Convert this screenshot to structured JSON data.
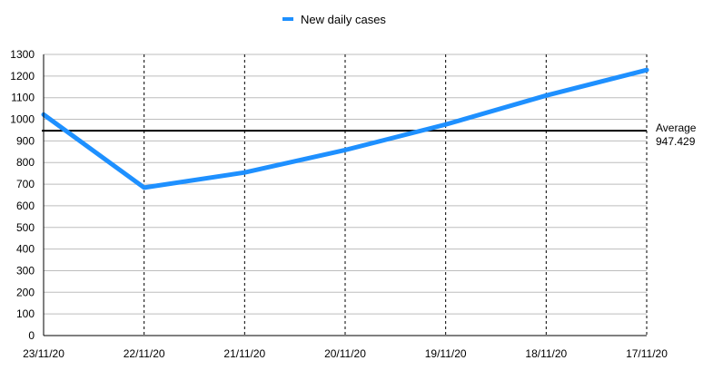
{
  "chart_data": {
    "type": "line",
    "title": "",
    "xlabel": "",
    "ylabel": "",
    "categories": [
      "23/11/20",
      "22/11/20",
      "21/11/20",
      "20/11/20",
      "19/11/20",
      "18/11/20",
      "17/11/20"
    ],
    "series": [
      {
        "name": "New daily cases",
        "values": [
          1022,
          684,
          754,
          858,
          976,
          1110,
          1228
        ],
        "color": "#1e90ff"
      }
    ],
    "ylim": [
      0,
      1300
    ],
    "yticks": [
      0,
      100,
      200,
      300,
      400,
      500,
      600,
      700,
      800,
      900,
      1000,
      1100,
      1200,
      1300
    ],
    "grid": {
      "horizontal": true,
      "vertical_dashed": true
    },
    "legend": {
      "position": "top-center"
    },
    "reference_line": {
      "label": "Average",
      "value": 947.429,
      "value_text": "947.429",
      "color": "#000000"
    }
  }
}
